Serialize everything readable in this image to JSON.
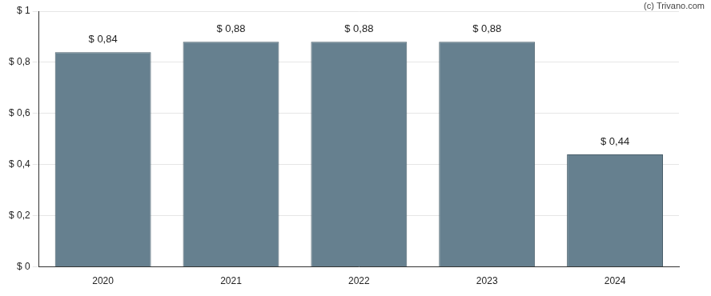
{
  "chart_data": {
    "type": "bar",
    "annotations": [
      "(c) Trivano.com"
    ],
    "categories": [
      "2020",
      "2021",
      "2022",
      "2023",
      "2024"
    ],
    "values": [
      0.84,
      0.88,
      0.88,
      0.88,
      0.44
    ],
    "value_labels": [
      "$ 0,84",
      "$ 0,88",
      "$ 0,88",
      "$ 0,88",
      "$ 0,44"
    ],
    "data_labels": true,
    "color": "#66808f",
    "ylim": [
      0,
      1
    ],
    "yticks": [
      {
        "value": 0,
        "label": "$ 0"
      },
      {
        "value": 0.2,
        "label": "$ 0,2"
      },
      {
        "value": 0.4,
        "label": "$ 0,4"
      },
      {
        "value": 0.6,
        "label": "$ 0,6"
      },
      {
        "value": 0.8,
        "label": "$ 0,8"
      },
      {
        "value": 1,
        "label": "$ 1"
      }
    ],
    "grid": true
  }
}
